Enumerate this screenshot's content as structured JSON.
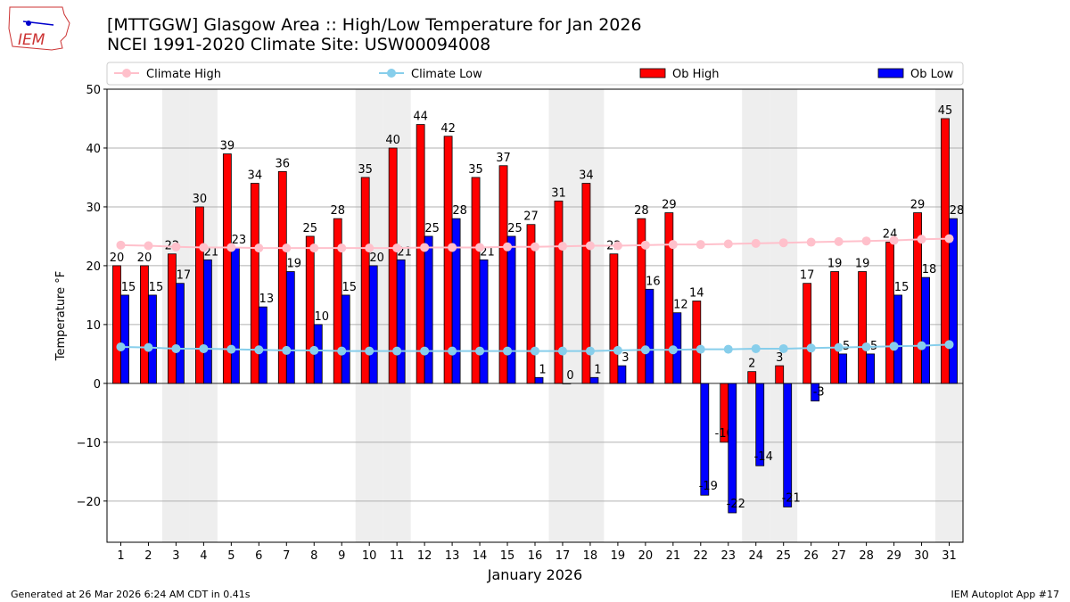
{
  "logo_text": "IEM",
  "title_line1": "[MTTGGW] Glasgow Area :: High/Low Temperature for Jan 2026",
  "title_line2": "NCEI 1991-2020 Climate Site: USW00094008",
  "footer_left": "Generated at 26 Mar 2026 6:24 AM CDT in 0.41s",
  "footer_right": "IEM Autoplot App #17",
  "colors": {
    "ob_high": "#ff0000",
    "ob_low": "#0000ff",
    "climate_high": "#ffc0cb",
    "climate_low": "#87ceeb",
    "weekend": "#eeeeee"
  },
  "chart_data": {
    "type": "bar",
    "xlabel": "January 2026",
    "ylabel": "Temperature °F",
    "ylim": [
      -27,
      50
    ],
    "xlim": [
      0.5,
      31.5
    ],
    "yticks": [
      -20,
      -10,
      0,
      10,
      20,
      30,
      40,
      50
    ],
    "ytick_labels": [
      "−20",
      "−10",
      "0",
      "10",
      "20",
      "30",
      "40",
      "50"
    ],
    "grid": true,
    "legend_placement": "top",
    "weekend_days": [
      3,
      4,
      10,
      11,
      17,
      18,
      24,
      25,
      31
    ],
    "x": [
      1,
      2,
      3,
      4,
      5,
      6,
      7,
      8,
      9,
      10,
      11,
      12,
      13,
      14,
      15,
      16,
      17,
      18,
      19,
      20,
      21,
      22,
      23,
      24,
      25,
      26,
      27,
      28,
      29,
      30,
      31
    ],
    "series": [
      {
        "name": "Climate High",
        "type": "line",
        "values": [
          23.5,
          23.4,
          23.2,
          23.1,
          23.1,
          23.0,
          23.0,
          23.0,
          23.0,
          23.0,
          23.0,
          23.1,
          23.1,
          23.1,
          23.2,
          23.2,
          23.3,
          23.4,
          23.4,
          23.5,
          23.6,
          23.6,
          23.7,
          23.8,
          23.9,
          24.0,
          24.1,
          24.2,
          24.3,
          24.5,
          24.6
        ]
      },
      {
        "name": "Climate Low",
        "type": "line",
        "values": [
          6.2,
          6.1,
          5.9,
          5.9,
          5.8,
          5.7,
          5.6,
          5.6,
          5.5,
          5.5,
          5.5,
          5.5,
          5.5,
          5.5,
          5.5,
          5.5,
          5.5,
          5.5,
          5.6,
          5.7,
          5.7,
          5.8,
          5.8,
          5.9,
          5.9,
          6.0,
          6.1,
          6.2,
          6.3,
          6.4,
          6.6
        ]
      },
      {
        "name": "Ob High",
        "type": "bar",
        "values": [
          20,
          20,
          22,
          30,
          39,
          34,
          36,
          25,
          28,
          35,
          40,
          44,
          42,
          35,
          37,
          27,
          31,
          34,
          22,
          28,
          29,
          14,
          -10,
          2,
          3,
          17,
          19,
          19,
          24,
          29,
          45
        ]
      },
      {
        "name": "Ob Low",
        "type": "bar",
        "values": [
          15,
          15,
          17,
          21,
          23,
          13,
          19,
          10,
          15,
          20,
          21,
          25,
          28,
          21,
          25,
          1,
          0,
          1,
          3,
          16,
          12,
          -19,
          -22,
          -14,
          -21,
          -3,
          5,
          5,
          15,
          18,
          28
        ]
      }
    ]
  }
}
